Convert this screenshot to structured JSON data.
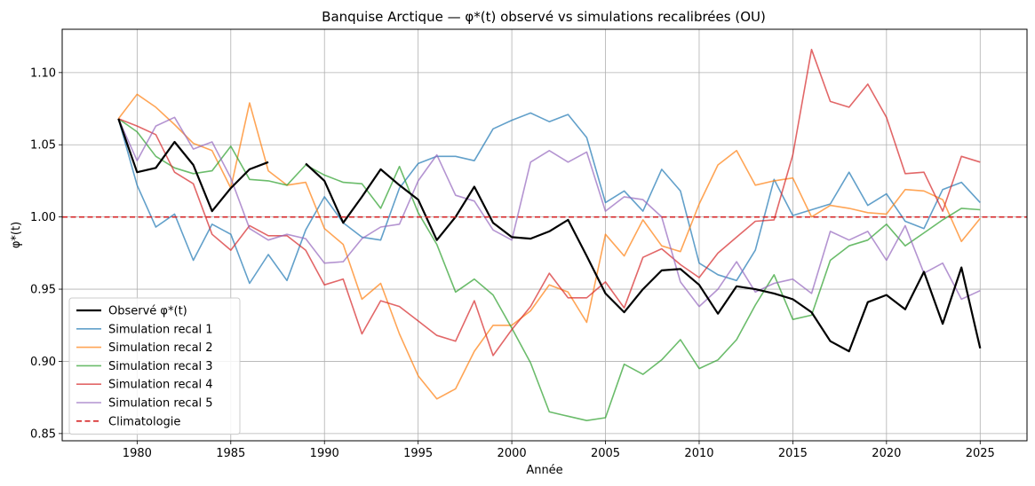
{
  "chart_data": {
    "type": "line",
    "title": "Banquise Arctique — φ*(t) observé vs simulations recalibrées (OU)",
    "xlabel": "Année",
    "ylabel": "φ*(t)",
    "xlim": [
      1976,
      2027.5
    ],
    "ylim": [
      0.845,
      1.13
    ],
    "xticks": [
      1980,
      1985,
      1990,
      1995,
      2000,
      2005,
      2010,
      2015,
      2020,
      2025
    ],
    "yticks": [
      0.85,
      0.9,
      0.95,
      1.0,
      1.05,
      1.1
    ],
    "ytick_labels": [
      "0.85",
      "0.90",
      "0.95",
      "1.00",
      "1.05",
      "1.10"
    ],
    "grid": true,
    "legend_position": "lower-left",
    "series": [
      {
        "name": "Observé φ*(t)",
        "color": "#000000",
        "style": "solid",
        "width": 2.2,
        "opacity": 1,
        "segments": [
          {
            "x": [
              1979,
              1980,
              1981,
              1982,
              1983,
              1984,
              1985,
              1986,
              1987
            ],
            "y": [
              1.068,
              1.031,
              1.034,
              1.052,
              1.036,
              1.004,
              1.02,
              1.033,
              1.038
            ]
          },
          {
            "x": [
              1989,
              1990,
              1991,
              1992,
              1993,
              1994,
              1995,
              1996,
              1997,
              1998,
              1999,
              2000,
              2001,
              2002,
              2003,
              2004,
              2005,
              2006,
              2007,
              2008,
              2009,
              2010,
              2011,
              2012,
              2013,
              2014,
              2015,
              2016,
              2017,
              2018,
              2019,
              2020,
              2021,
              2022,
              2023,
              2024,
              2025
            ],
            "y": [
              1.037,
              1.025,
              0.996,
              1.014,
              1.033,
              1.022,
              1.012,
              0.984,
              1.0,
              1.021,
              0.996,
              0.986,
              0.985,
              0.99,
              0.998,
              0.973,
              0.947,
              0.934,
              0.95,
              0.963,
              0.964,
              0.953,
              0.933,
              0.952,
              0.95,
              0.947,
              0.943,
              0.934,
              0.914,
              0.907,
              0.941,
              0.946,
              0.936,
              0.962,
              0.926,
              0.965,
              0.909
            ]
          }
        ]
      },
      {
        "name": "Simulation recal 1",
        "color": "#1f77b4",
        "style": "solid",
        "width": 1.6,
        "opacity": 0.7,
        "segments": [
          {
            "x": [
              1979,
              1980,
              1981,
              1982,
              1983,
              1984,
              1985,
              1986,
              1987,
              1988,
              1989,
              1990,
              1991,
              1992,
              1993,
              1994,
              1995,
              1996,
              1997,
              1998,
              1999,
              2000,
              2001,
              2002,
              2003,
              2004,
              2005,
              2006,
              2007,
              2008,
              2009,
              2010,
              2011,
              2012,
              2013,
              2014,
              2015,
              2016,
              2017,
              2018,
              2019,
              2020,
              2021,
              2022,
              2023,
              2024,
              2025
            ],
            "y": [
              1.068,
              1.022,
              0.993,
              1.002,
              0.97,
              0.995,
              0.988,
              0.954,
              0.974,
              0.956,
              0.991,
              1.014,
              0.996,
              0.986,
              0.984,
              1.02,
              1.037,
              1.042,
              1.042,
              1.039,
              1.061,
              1.067,
              1.072,
              1.066,
              1.071,
              1.055,
              1.01,
              1.018,
              1.004,
              1.033,
              1.018,
              0.968,
              0.96,
              0.956,
              0.977,
              1.026,
              1.001,
              1.005,
              1.009,
              1.031,
              1.008,
              1.016,
              0.997,
              0.992,
              1.019,
              1.024,
              1.01
            ]
          }
        ]
      },
      {
        "name": "Simulation recal 2",
        "color": "#ff7f0e",
        "style": "solid",
        "width": 1.6,
        "opacity": 0.7,
        "segments": [
          {
            "x": [
              1979,
              1980,
              1981,
              1982,
              1983,
              1984,
              1985,
              1986,
              1987,
              1988,
              1989,
              1990,
              1991,
              1992,
              1993,
              1994,
              1995,
              1996,
              1997,
              1998,
              1999,
              2000,
              2001,
              2002,
              2003,
              2004,
              2005,
              2006,
              2007,
              2008,
              2009,
              2010,
              2011,
              2012,
              2013,
              2014,
              2015,
              2016,
              2017,
              2018,
              2019,
              2020,
              2021,
              2022,
              2023,
              2024,
              2025
            ],
            "y": [
              1.068,
              1.085,
              1.076,
              1.064,
              1.051,
              1.046,
              1.02,
              1.079,
              1.032,
              1.022,
              1.024,
              0.992,
              0.981,
              0.943,
              0.954,
              0.919,
              0.89,
              0.874,
              0.881,
              0.907,
              0.925,
              0.925,
              0.935,
              0.953,
              0.948,
              0.927,
              0.988,
              0.973,
              0.998,
              0.98,
              0.976,
              1.009,
              1.036,
              1.046,
              1.022,
              1.025,
              1.027,
              1.0,
              1.008,
              1.006,
              1.003,
              1.002,
              1.019,
              1.018,
              1.012,
              0.983,
              0.999
            ]
          }
        ]
      },
      {
        "name": "Simulation recal 3",
        "color": "#2ca02c",
        "style": "solid",
        "width": 1.6,
        "opacity": 0.7,
        "segments": [
          {
            "x": [
              1979,
              1980,
              1981,
              1982,
              1983,
              1984,
              1985,
              1986,
              1987,
              1988,
              1989,
              1990,
              1991,
              1992,
              1993,
              1994,
              1995,
              1996,
              1997,
              1998,
              1999,
              2000,
              2001,
              2002,
              2003,
              2004,
              2005,
              2006,
              2007,
              2008,
              2009,
              2010,
              2011,
              2012,
              2013,
              2014,
              2015,
              2016,
              2017,
              2018,
              2019,
              2020,
              2021,
              2022,
              2023,
              2024,
              2025
            ],
            "y": [
              1.068,
              1.059,
              1.042,
              1.034,
              1.03,
              1.032,
              1.049,
              1.026,
              1.025,
              1.022,
              1.036,
              1.029,
              1.024,
              1.023,
              1.006,
              1.035,
              1.003,
              0.981,
              0.948,
              0.957,
              0.946,
              0.923,
              0.899,
              0.865,
              0.862,
              0.859,
              0.861,
              0.898,
              0.891,
              0.901,
              0.915,
              0.895,
              0.901,
              0.915,
              0.939,
              0.96,
              0.929,
              0.932,
              0.97,
              0.98,
              0.984,
              0.995,
              0.98,
              0.989,
              0.998,
              1.006,
              1.005
            ]
          }
        ]
      },
      {
        "name": "Simulation recal 4",
        "color": "#d62728",
        "style": "solid",
        "width": 1.6,
        "opacity": 0.7,
        "segments": [
          {
            "x": [
              1979,
              1980,
              1981,
              1982,
              1983,
              1984,
              1985,
              1986,
              1987,
              1988,
              1989,
              1990,
              1991,
              1992,
              1993,
              1994,
              1995,
              1996,
              1997,
              1998,
              1999,
              2000,
              2001,
              2002,
              2003,
              2004,
              2005,
              2006,
              2007,
              2008,
              2009,
              2010,
              2011,
              2012,
              2013,
              2014,
              2015,
              2016,
              2017,
              2018,
              2019,
              2020,
              2021,
              2022,
              2023,
              2024,
              2025
            ],
            "y": [
              1.068,
              1.063,
              1.057,
              1.031,
              1.023,
              0.988,
              0.977,
              0.994,
              0.987,
              0.987,
              0.977,
              0.953,
              0.957,
              0.919,
              0.942,
              0.938,
              0.928,
              0.918,
              0.914,
              0.942,
              0.904,
              0.922,
              0.938,
              0.961,
              0.944,
              0.944,
              0.955,
              0.937,
              0.972,
              0.978,
              0.967,
              0.958,
              0.975,
              0.986,
              0.997,
              0.998,
              1.043,
              1.116,
              1.08,
              1.076,
              1.092,
              1.069,
              1.03,
              1.031,
              1.004,
              1.042,
              1.038
            ]
          }
        ]
      },
      {
        "name": "Simulation recal 5",
        "color": "#9467bd",
        "style": "solid",
        "width": 1.6,
        "opacity": 0.7,
        "segments": [
          {
            "x": [
              1979,
              1980,
              1981,
              1982,
              1983,
              1984,
              1985,
              1986,
              1987,
              1988,
              1989,
              1990,
              1991,
              1992,
              1993,
              1994,
              1995,
              1996,
              1997,
              1998,
              1999,
              2000,
              2001,
              2002,
              2003,
              2004,
              2005,
              2006,
              2007,
              2008,
              2009,
              2010,
              2011,
              2012,
              2013,
              2014,
              2015,
              2016,
              2017,
              2018,
              2019,
              2020,
              2021,
              2022,
              2023,
              2024,
              2025
            ],
            "y": [
              1.068,
              1.039,
              1.063,
              1.069,
              1.047,
              1.052,
              1.027,
              0.992,
              0.984,
              0.988,
              0.985,
              0.968,
              0.969,
              0.985,
              0.993,
              0.995,
              1.025,
              1.043,
              1.015,
              1.011,
              0.991,
              0.984,
              1.038,
              1.046,
              1.038,
              1.045,
              1.004,
              1.014,
              1.012,
              1.0,
              0.955,
              0.938,
              0.95,
              0.969,
              0.948,
              0.954,
              0.957,
              0.947,
              0.99,
              0.984,
              0.99,
              0.97,
              0.994,
              0.961,
              0.968,
              0.943,
              0.949
            ]
          }
        ]
      },
      {
        "name": "Climatologie",
        "color": "#d62728",
        "style": "dashed",
        "width": 1.6,
        "opacity": 1,
        "hline": 1.0
      }
    ]
  }
}
